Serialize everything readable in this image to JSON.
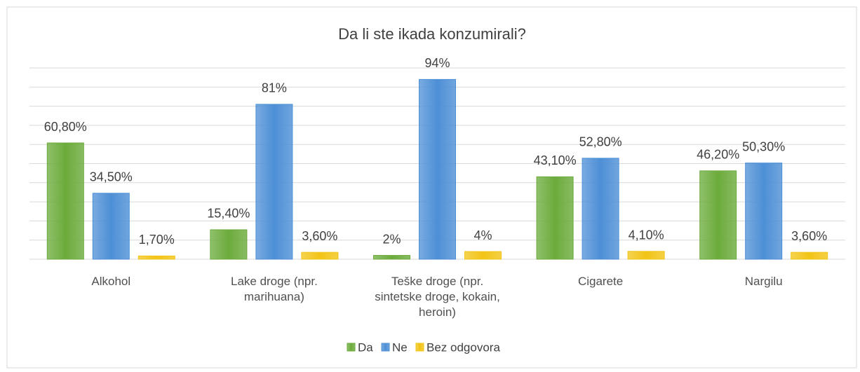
{
  "chart_data": {
    "type": "bar",
    "title": "Da li ste ikada konzumirali?",
    "categories": [
      "Alkohol",
      "Lake droge (npr. marihuana)",
      "Teške droge (npr. sintetske droge, kokain, heroin)",
      "Cigarete",
      "Nargilu"
    ],
    "series": [
      {
        "name": "Da",
        "color": "#6bab3b",
        "values": [
          60.8,
          15.4,
          2,
          43.1,
          46.2
        ],
        "value_labels": [
          "60,80%",
          "15,40%",
          "2%",
          "43,10%",
          "46,20%"
        ]
      },
      {
        "name": "Ne",
        "color": "#4d8fd6",
        "values": [
          34.5,
          81,
          94,
          52.8,
          50.3
        ],
        "value_labels": [
          "34,50%",
          "81%",
          "94%",
          "52,80%",
          "50,30%"
        ]
      },
      {
        "name": "Bez odgovora",
        "color": "#f2c416",
        "values": [
          1.7,
          3.6,
          4,
          4.1,
          3.6
        ],
        "value_labels": [
          "1,70%",
          "3,60%",
          "4%",
          "4,10%",
          "3,60%"
        ]
      }
    ],
    "ylim": [
      0,
      100
    ],
    "yticks": [
      0,
      10,
      20,
      30,
      40,
      50,
      60,
      70,
      80,
      90,
      100
    ],
    "grid": true,
    "legend": "bottom"
  }
}
